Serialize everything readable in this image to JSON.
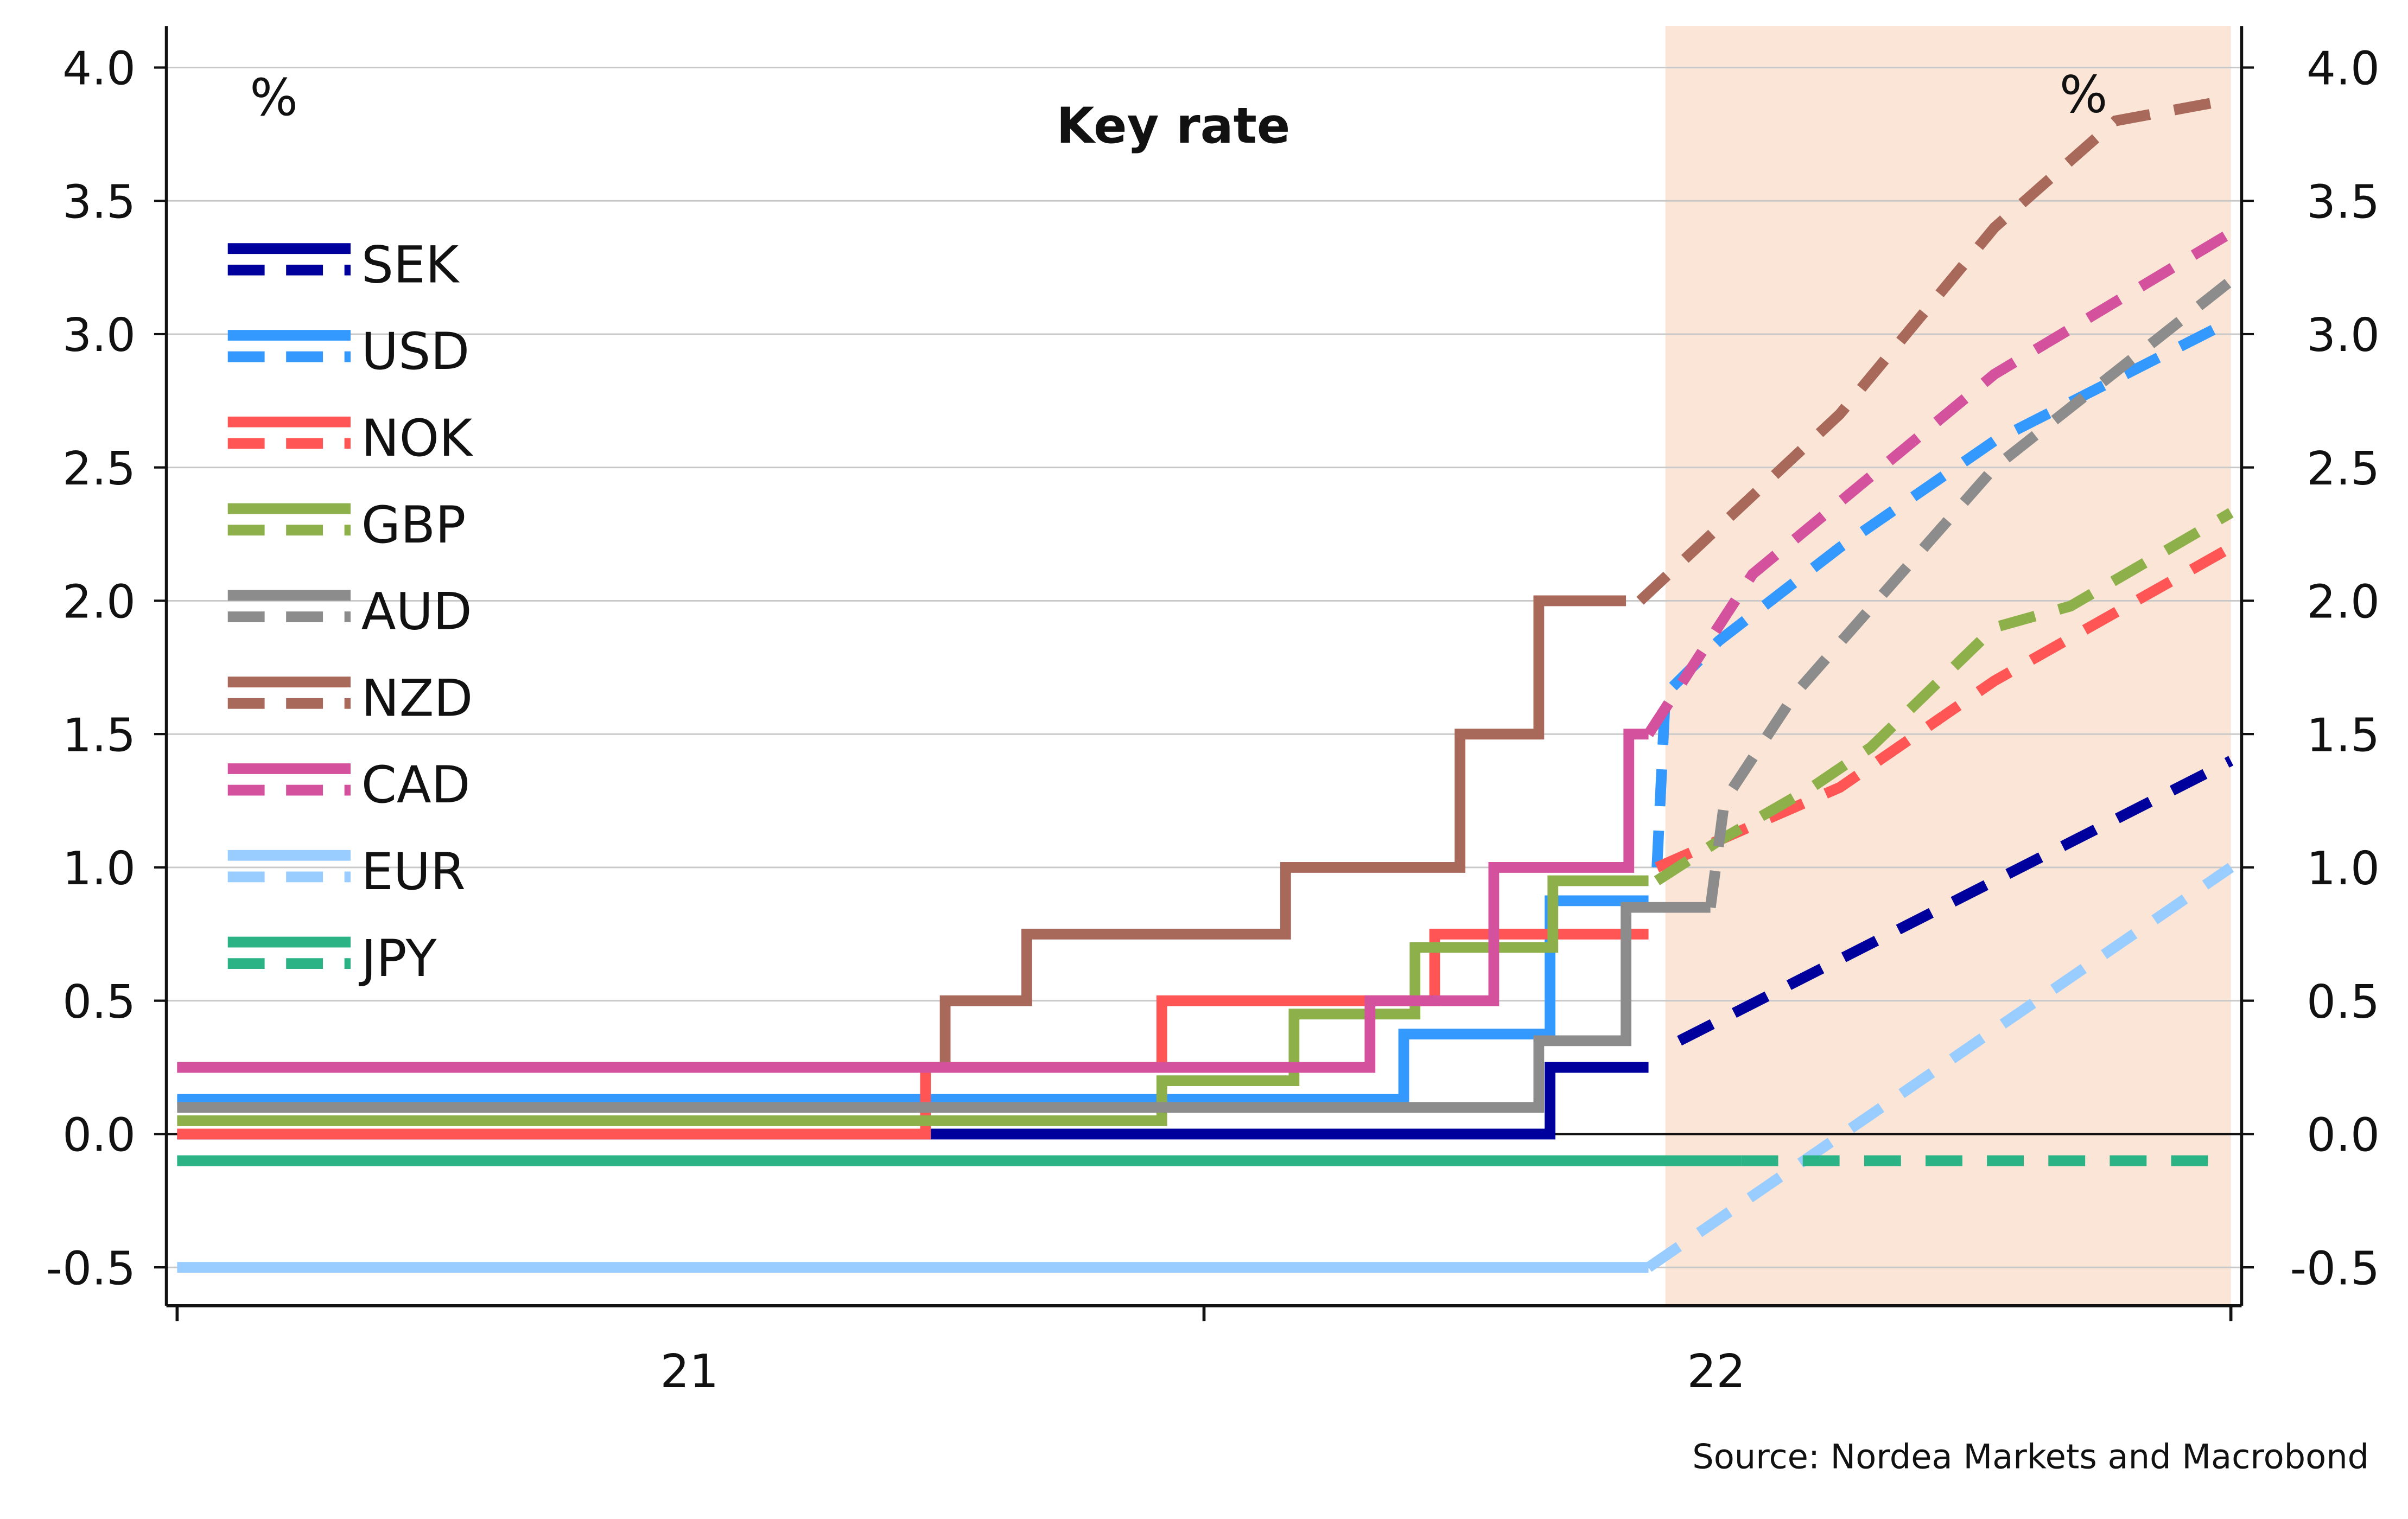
{
  "chart_data": {
    "type": "line",
    "title": "Key rate",
    "ylabel_left": "%",
    "ylabel_right": "%",
    "source": "Source: Nordea Markets and Macrobond",
    "ylim": [
      -0.5,
      4.0
    ],
    "yticks": [
      "4.0",
      "3.5",
      "3.0",
      "2.5",
      "2.0",
      "1.5",
      "1.0",
      "0.5",
      "0.0",
      "-0.5"
    ],
    "xlim": [
      "2021-01-01",
      "2023-01-01"
    ],
    "xtick_labels": [
      {
        "label": "21",
        "at": "2021-07-01"
      },
      {
        "label": "22",
        "at": "2022-07-01"
      }
    ],
    "xtick_marks": [
      "2021-01-01",
      "2022-01-01",
      "2023-01-01"
    ],
    "forecast_shade": {
      "from": "2022-06-14",
      "to": "2023-01-01",
      "color": "#fbe5d6"
    },
    "grid": "horizontal",
    "legend_placement": "top-left",
    "legend_note": "solid = actual, dashed = forecast",
    "series": [
      {
        "name": "SEK",
        "color": "#00009c",
        "actual": [
          [
            "2021-01-01",
            0
          ],
          [
            "2022-05-04",
            0.25
          ],
          [
            "2022-06-08",
            0.25
          ]
        ],
        "forecast": [
          [
            "2022-06-19",
            0.35
          ],
          [
            "2023-01-01",
            1.4
          ]
        ]
      },
      {
        "name": "USD",
        "color": "#3399ff",
        "actual": [
          [
            "2021-01-01",
            0.13
          ],
          [
            "2022-03-13",
            0.375
          ],
          [
            "2022-05-04",
            0.875
          ],
          [
            "2022-06-08",
            0.875
          ]
        ],
        "forecast": [
          [
            "2022-06-11",
            1.0
          ],
          [
            "2022-06-14",
            1.65
          ],
          [
            "2022-07-03",
            1.85
          ],
          [
            "2022-08-15",
            2.2
          ],
          [
            "2022-10-09",
            2.6
          ],
          [
            "2023-01-01",
            3.05
          ]
        ]
      },
      {
        "name": "NOK",
        "color": "#ff5555",
        "actual": [
          [
            "2021-01-01",
            0
          ],
          [
            "2021-09-24",
            0.25
          ],
          [
            "2021-12-17",
            0.5
          ],
          [
            "2022-03-24",
            0.75
          ],
          [
            "2022-06-08",
            0.75
          ]
        ],
        "forecast": [
          [
            "2022-06-11",
            1.0
          ],
          [
            "2022-08-15",
            1.3
          ],
          [
            "2022-10-09",
            1.7
          ],
          [
            "2023-01-01",
            2.2
          ]
        ]
      },
      {
        "name": "GBP",
        "color": "#8db04a",
        "actual": [
          [
            "2021-01-01",
            0.05
          ],
          [
            "2021-12-17",
            0.2
          ],
          [
            "2022-02-02",
            0.45
          ],
          [
            "2022-03-17",
            0.7
          ],
          [
            "2022-05-05",
            0.95
          ],
          [
            "2022-06-08",
            0.95
          ]
        ],
        "forecast": [
          [
            "2022-06-11",
            0.95
          ],
          [
            "2022-07-03",
            1.1
          ],
          [
            "2022-08-05",
            1.3
          ],
          [
            "2022-08-26",
            1.45
          ],
          [
            "2022-10-09",
            1.9
          ],
          [
            "2022-11-05",
            1.98
          ],
          [
            "2023-01-01",
            2.33
          ]
        ]
      },
      {
        "name": "AUD",
        "color": "#8c8c8c",
        "actual": [
          [
            "2021-01-01",
            0.1
          ],
          [
            "2022-04-30",
            0.35
          ],
          [
            "2022-05-31",
            0.85
          ],
          [
            "2022-06-30",
            0.85
          ]
        ],
        "forecast": [
          [
            "2022-06-30",
            0.85
          ],
          [
            "2022-07-05",
            1.25
          ],
          [
            "2022-07-30",
            1.65
          ],
          [
            "2022-10-09",
            2.5
          ],
          [
            "2023-01-01",
            3.2
          ]
        ]
      },
      {
        "name": "NZD",
        "color": "#a8695b",
        "actual": [
          [
            "2021-01-01",
            0.25
          ],
          [
            "2021-10-01",
            0.5
          ],
          [
            "2021-10-30",
            0.75
          ],
          [
            "2022-01-30",
            1.0
          ],
          [
            "2022-04-02",
            1.5
          ],
          [
            "2022-04-30",
            2.0
          ],
          [
            "2022-05-31",
            2.0
          ]
        ],
        "forecast": [
          [
            "2022-06-05",
            2.0
          ],
          [
            "2022-08-15",
            2.7
          ],
          [
            "2022-10-09",
            3.4
          ],
          [
            "2022-11-21",
            3.8
          ],
          [
            "2023-01-01",
            3.88
          ]
        ]
      },
      {
        "name": "CAD",
        "color": "#d4519d",
        "actual": [
          [
            "2021-01-01",
            0.25
          ],
          [
            "2022-03-01",
            0.5
          ],
          [
            "2022-04-14",
            1.0
          ],
          [
            "2022-06-01",
            1.5
          ],
          [
            "2022-06-08",
            1.5
          ]
        ],
        "forecast": [
          [
            "2022-06-08",
            1.5
          ],
          [
            "2022-07-15",
            2.1
          ],
          [
            "2022-10-09",
            2.85
          ],
          [
            "2023-01-01",
            3.38
          ]
        ]
      },
      {
        "name": "EUR",
        "color": "#99ccff",
        "actual": [
          [
            "2021-01-01",
            -0.5
          ],
          [
            "2022-06-08",
            -0.5
          ]
        ],
        "forecast": [
          [
            "2022-06-08",
            -0.5
          ],
          [
            "2023-01-01",
            1.0
          ]
        ]
      },
      {
        "name": "JPY",
        "color": "#2bb386",
        "actual": [
          [
            "2021-01-01",
            -0.1
          ],
          [
            "2022-07-11",
            -0.1
          ]
        ],
        "forecast": [
          [
            "2022-07-11",
            -0.1
          ],
          [
            "2023-01-01",
            -0.1
          ]
        ]
      }
    ]
  }
}
